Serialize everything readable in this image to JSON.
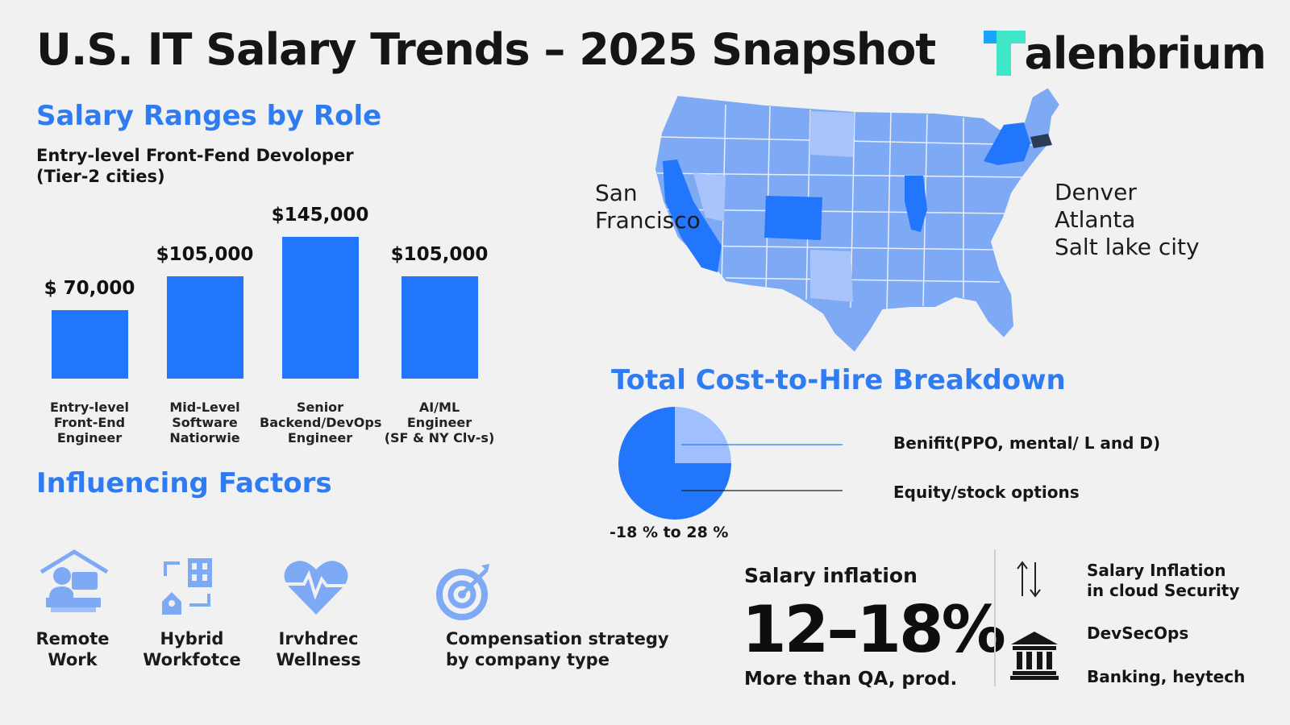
{
  "header": {
    "title": "U.S. IT Salary Trends – 2025 Snapshot",
    "logo_text": "alenbrium",
    "logo_letter": "T"
  },
  "colors": {
    "accent": "#2f7bf2",
    "bar": "#2176fb",
    "pie_major": "#2176fb",
    "pie_minor": "#9fbfff",
    "logo_cyan": "#3fe6c8",
    "logo_blue": "#1aa3ff"
  },
  "salary_section": {
    "heading": "Salary Ranges by Role",
    "subtitle_line1": "Entry-level Front-Fend Devoloper",
    "subtitle_line2": "(Tier-2 cities)"
  },
  "chart_data": [
    {
      "type": "bar",
      "title": "Salary Ranges by Role",
      "categories": [
        [
          "Entry-level",
          "Front-End",
          "Engineer"
        ],
        [
          "Mid-Level",
          "Software",
          "Natiorwie"
        ],
        [
          "Senior",
          "Backend/DevOps",
          "Engineer"
        ],
        [
          "AI/ML",
          "Engineer",
          "(SF & NY Clv-s)"
        ]
      ],
      "values": [
        70000,
        105000,
        145000,
        105000
      ],
      "value_labels": [
        "$ 70,000",
        "$105,000",
        "$145,000",
        "$105,000"
      ],
      "ylim": [
        0,
        145000
      ]
    },
    {
      "type": "pie",
      "title": "Total Cost-to-Hire Breakdown",
      "slices": [
        {
          "label": "Benifit(PPO, mental/ L and D)",
          "value": 25
        },
        {
          "label": "Equity/stock options",
          "value": 75
        }
      ],
      "caption": "-18 % to 28 %"
    }
  ],
  "map": {
    "cities_left": [
      "San",
      "Francisco"
    ],
    "cities_right": [
      "Denver",
      "Atlanta",
      "Salt lake city"
    ]
  },
  "factors": {
    "heading": "Influencing Factors",
    "items": [
      {
        "line1": "Remote",
        "line2": "Work",
        "icon": "remote-work-icon"
      },
      {
        "line1": "Hybrid",
        "line2": "Workfotce",
        "icon": "hybrid-workforce-icon"
      },
      {
        "line1": "Irvhdrec",
        "line2": "Wellness",
        "icon": "heart-pulse-icon"
      },
      {
        "line1": "Compensation strategy",
        "line2": "by company type",
        "icon": "target-icon"
      }
    ]
  },
  "inflation": {
    "heading": "Salary inflation",
    "big": "12–18%",
    "sub": "More than QA, prod.",
    "side_items": [
      {
        "line1": "Salary Inflation",
        "line2": "in cloud Security",
        "icon": "up-down-arrows-icon"
      },
      {
        "line1": "DevSecOps",
        "line2": "",
        "icon": "bank-icon"
      },
      {
        "line1": "Banking, heytech",
        "line2": "",
        "icon": ""
      }
    ]
  }
}
